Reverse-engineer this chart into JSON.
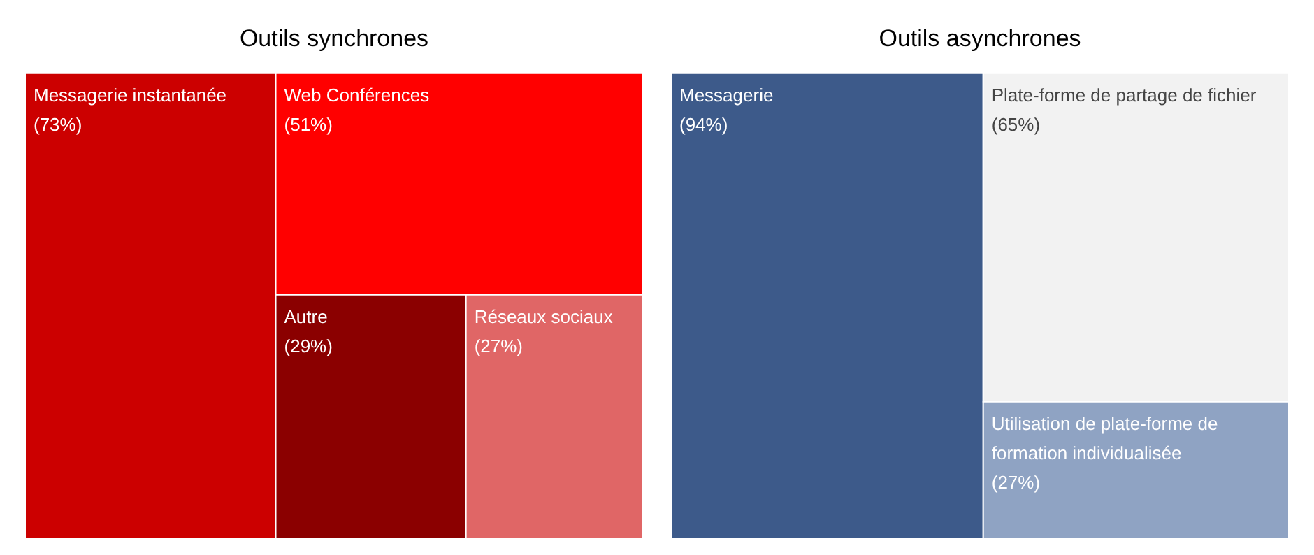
{
  "chart_data": [
    {
      "type": "other",
      "title": "Outils synchrones",
      "categories": [
        "Messagerie instantanée",
        "Web Conférences",
        "Autre",
        "Réseaux sociaux"
      ],
      "values": [
        73,
        51,
        29,
        27
      ],
      "value_labels": [
        "(73%)",
        "(51%)",
        "(29%)",
        "(27%)"
      ],
      "colors": [
        "#cc0000",
        "#ff0000",
        "#8b0000",
        "#e06666"
      ]
    },
    {
      "type": "other",
      "title": "Outils asynchrones",
      "categories": [
        "Messagerie",
        "Plate-forme de partage de fichier",
        "Utilisation de plate-forme de formation individualisée"
      ],
      "values": [
        94,
        65,
        27
      ],
      "value_labels": [
        "(94%)",
        "(65%)",
        "(27%)"
      ],
      "colors": [
        "#3d5a8a",
        "#f2f2f2",
        "#8fa3c3"
      ]
    }
  ]
}
